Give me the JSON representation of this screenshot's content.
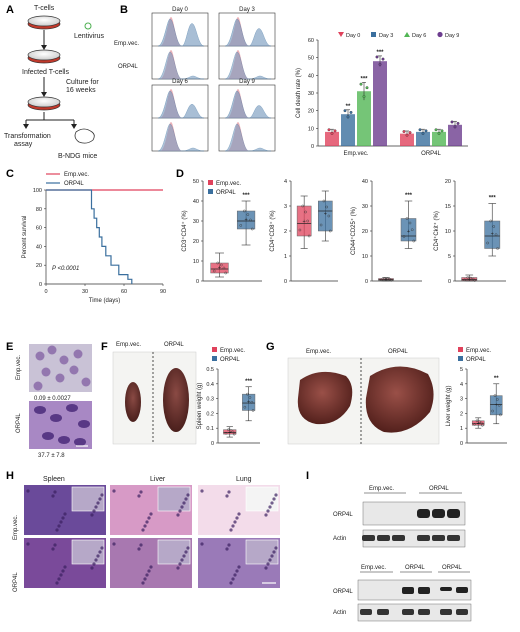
{
  "panels": {
    "A": {
      "letter": "A",
      "t_cells": "T-cells",
      "lentivirus": "Lentivirus",
      "infected": "Infected T-cells",
      "culture_line1": "Culture for",
      "culture_line2": "16 weeks",
      "transformation_line1": "Transformation",
      "transformation_line2": "assay",
      "mice": "B-NDG mice"
    },
    "B": {
      "letter": "B",
      "flow_days": [
        "Day 0",
        "Day 3",
        "Day 6",
        "Day 9"
      ],
      "row_labels": [
        "Emp.vec.",
        "ORP4L"
      ],
      "colors": {
        "day0": "#e0425c",
        "day3": "#3a6f9e",
        "day6": "#52b655",
        "day9": "#6d3d8f",
        "filled_red": "#e8a0a8",
        "filled_blue": "#7a9cc0"
      }
    },
    "C": {
      "letter": "C",
      "pvalue": "P <0.0001"
    },
    "D": {
      "letter": "D"
    },
    "E": {
      "letter": "E",
      "row_labels": [
        "Emp.vec.",
        "ORP4L"
      ],
      "values": [
        "0.09 ± 0.0027",
        "37.7 ± 7.8"
      ]
    },
    "F": {
      "letter": "F",
      "photo_labels": [
        "Emp.vec.",
        "ORP4L"
      ]
    },
    "G": {
      "letter": "G",
      "photo_labels": [
        "Emp.vec.",
        "ORP4L"
      ]
    },
    "H": {
      "letter": "H",
      "col_labels": [
        "Spleen",
        "Liver",
        "Lung"
      ],
      "row_labels": [
        "Emp.vec.",
        "ORP4L"
      ]
    },
    "I": {
      "letter": "I",
      "blot1_groups": [
        "Emp.vec.",
        "ORP4L"
      ],
      "blot2_groups": [
        "Emp.vec.",
        "ORP4L",
        "ORP4L"
      ],
      "bands": [
        "ORP4L",
        "Actin"
      ]
    }
  },
  "chart_data": [
    {
      "id": "B-bar",
      "type": "bar",
      "ylabel": "Cell death rate (%)",
      "ylim": [
        0,
        60
      ],
      "yticks": [
        0,
        10,
        20,
        30,
        40,
        50,
        60
      ],
      "categories": [
        "Emp.vec.",
        "ORP4L"
      ],
      "legend": [
        "Day 0",
        "Day 3",
        "Day 6",
        "Day 9"
      ],
      "legend_position": "top",
      "series": [
        {
          "name": "Day 0",
          "values": [
            8,
            7
          ],
          "errors": [
            1.5,
            1.5
          ],
          "color": "#e0425c"
        },
        {
          "name": "Day 3",
          "values": [
            18,
            8
          ],
          "errors": [
            2.5,
            1.5
          ],
          "color": "#3a6f9e"
        },
        {
          "name": "Day 6",
          "values": [
            31,
            8
          ],
          "errors": [
            5,
            1.5
          ],
          "color": "#52b655"
        },
        {
          "name": "Day 9",
          "values": [
            48,
            12
          ],
          "errors": [
            3,
            2
          ],
          "color": "#6d3d8f"
        }
      ],
      "significance": [
        "",
        "**",
        "***",
        "***"
      ]
    },
    {
      "id": "C-survival",
      "type": "line",
      "ylabel": "Percent survival",
      "xlabel": "Time (days)",
      "xlim": [
        0,
        90
      ],
      "ylim": [
        0,
        100
      ],
      "xticks": [
        0,
        30,
        60,
        90
      ],
      "yticks": [
        0,
        20,
        40,
        60,
        80,
        100
      ],
      "legend": [
        "Emp.vec.",
        "ORP4L"
      ],
      "series": [
        {
          "name": "Emp.vec.",
          "color": "#e0425c",
          "x": [
            0,
            90
          ],
          "y": [
            100,
            100
          ]
        },
        {
          "name": "ORP4L",
          "color": "#3a6f9e",
          "x": [
            0,
            35,
            35,
            37,
            37,
            39,
            39,
            41,
            41,
            43,
            43,
            46,
            46,
            50,
            50,
            56,
            56,
            63,
            63,
            66,
            66
          ],
          "y": [
            100,
            100,
            80,
            80,
            70,
            70,
            60,
            60,
            50,
            50,
            40,
            40,
            30,
            30,
            20,
            20,
            10,
            10,
            5,
            5,
            0
          ]
        }
      ]
    },
    {
      "id": "D-boxplots",
      "type": "box",
      "legend": [
        "Emp.vec.",
        "ORP4L"
      ],
      "colors": {
        "emp": "#e0425c",
        "orp": "#3a6f9e"
      },
      "plots": [
        {
          "ylabel": "CD3⁺CD4⁺ (%)",
          "ylim": [
            0,
            50
          ],
          "yticks": [
            0,
            10,
            20,
            30,
            40,
            50
          ],
          "sig": "***",
          "groups": [
            {
              "min": 2,
              "q1": 4,
              "median": 6,
              "q3": 9,
              "max": 14,
              "mean": 7
            },
            {
              "min": 18,
              "q1": 26,
              "median": 30,
              "q3": 35,
              "max": 40,
              "mean": 31
            }
          ]
        },
        {
          "ylabel": "CD4⁺CD8⁺ (%)",
          "ylim": [
            0,
            4
          ],
          "yticks": [
            0,
            1,
            2,
            3,
            4
          ],
          "sig": "",
          "groups": [
            {
              "min": 1.3,
              "q1": 1.8,
              "median": 2.3,
              "q3": 3.0,
              "max": 3.4,
              "mean": 2.4
            },
            {
              "min": 1.6,
              "q1": 2.0,
              "median": 2.8,
              "q3": 3.2,
              "max": 3.6,
              "mean": 2.7
            }
          ]
        },
        {
          "ylabel": "CD44⁺CD25⁺ (%)",
          "ylim": [
            0,
            40
          ],
          "yticks": [
            0,
            10,
            20,
            30,
            40
          ],
          "sig": "***",
          "groups": [
            {
              "min": 0,
              "q1": 0.3,
              "median": 0.6,
              "q3": 1.0,
              "max": 1.4,
              "mean": 0.7
            },
            {
              "min": 13,
              "q1": 16,
              "median": 18,
              "q3": 25,
              "max": 32,
              "mean": 20
            }
          ]
        },
        {
          "ylabel": "CD4⁺Ckit⁺ (%)",
          "ylim": [
            0,
            20
          ],
          "yticks": [
            0,
            5,
            10,
            15,
            20
          ],
          "sig": "***",
          "groups": [
            {
              "min": 0,
              "q1": 0.1,
              "median": 0.3,
              "q3": 0.7,
              "max": 1.2,
              "mean": 0.4
            },
            {
              "min": 5,
              "q1": 6.5,
              "median": 9,
              "q3": 12,
              "max": 15.5,
              "mean": 9.5
            }
          ]
        }
      ]
    },
    {
      "id": "F-spleen",
      "type": "box",
      "ylabel": "Spleen weight (g)",
      "ylim": [
        0.0,
        0.5
      ],
      "yticks": [
        0.0,
        0.1,
        0.2,
        0.3,
        0.4,
        0.5
      ],
      "legend": [
        "Emp.vec.",
        "ORP4L"
      ],
      "sig": "***",
      "groups": [
        {
          "min": 0.04,
          "q1": 0.06,
          "median": 0.07,
          "q3": 0.09,
          "max": 0.11,
          "mean": 0.075
        },
        {
          "min": 0.15,
          "q1": 0.22,
          "median": 0.27,
          "q3": 0.33,
          "max": 0.38,
          "mean": 0.28
        }
      ]
    },
    {
      "id": "G-liver",
      "type": "box",
      "ylabel": "Liver weight (g)",
      "ylim": [
        0,
        5
      ],
      "yticks": [
        0,
        1,
        2,
        3,
        4,
        5
      ],
      "legend": [
        "Emp.vec.",
        "ORP4L"
      ],
      "sig": "**",
      "groups": [
        {
          "min": 1.0,
          "q1": 1.2,
          "median": 1.3,
          "q3": 1.5,
          "max": 1.7,
          "mean": 1.35
        },
        {
          "min": 1.3,
          "q1": 1.9,
          "median": 2.6,
          "q3": 3.2,
          "max": 4.0,
          "mean": 2.6
        }
      ]
    }
  ]
}
